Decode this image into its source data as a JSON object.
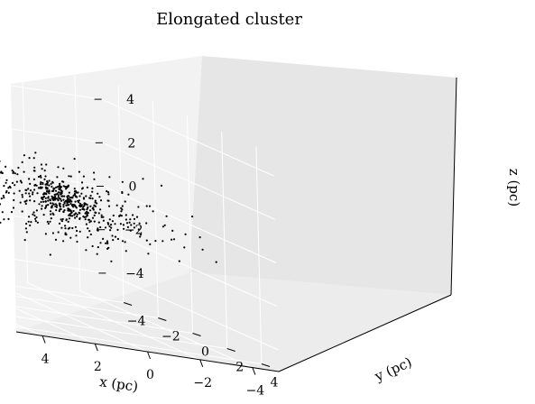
{
  "chart_data": {
    "type": "scatter",
    "title": "Elongated cluster",
    "projection": "3d",
    "grid": true,
    "point_color": "#000000",
    "pane_colors": {
      "left": "#f2f2f2",
      "back": "#e6e6e6",
      "floor": "#ececec"
    },
    "xlabel": "x (pc)",
    "ylabel": "y (pc)",
    "zlabel": "z (pc)",
    "xlim": [
      -5,
      5
    ],
    "ylim": [
      -5,
      5
    ],
    "zlim": [
      -5,
      5
    ],
    "x_ticks": [
      4,
      2,
      0,
      -2,
      -4
    ],
    "y_ticks": [
      -4,
      -2,
      0,
      2,
      4
    ],
    "z_ticks": [
      4,
      2,
      0,
      -2,
      -4
    ],
    "x_tick_labels": [
      "4",
      "2",
      "0",
      "−2",
      "−4"
    ],
    "y_tick_labels": [
      "−4",
      "−2",
      "0",
      "2",
      "4"
    ],
    "z_tick_labels": [
      "4",
      "2",
      "0",
      "−2",
      "−4"
    ],
    "n_points": 600,
    "distribution": {
      "description_values": "elongated along x, with dense core near origin",
      "x_range": [
        -5,
        5
      ],
      "y_range": [
        -3,
        3
      ],
      "z_range": [
        -4.5,
        4
      ]
    }
  }
}
